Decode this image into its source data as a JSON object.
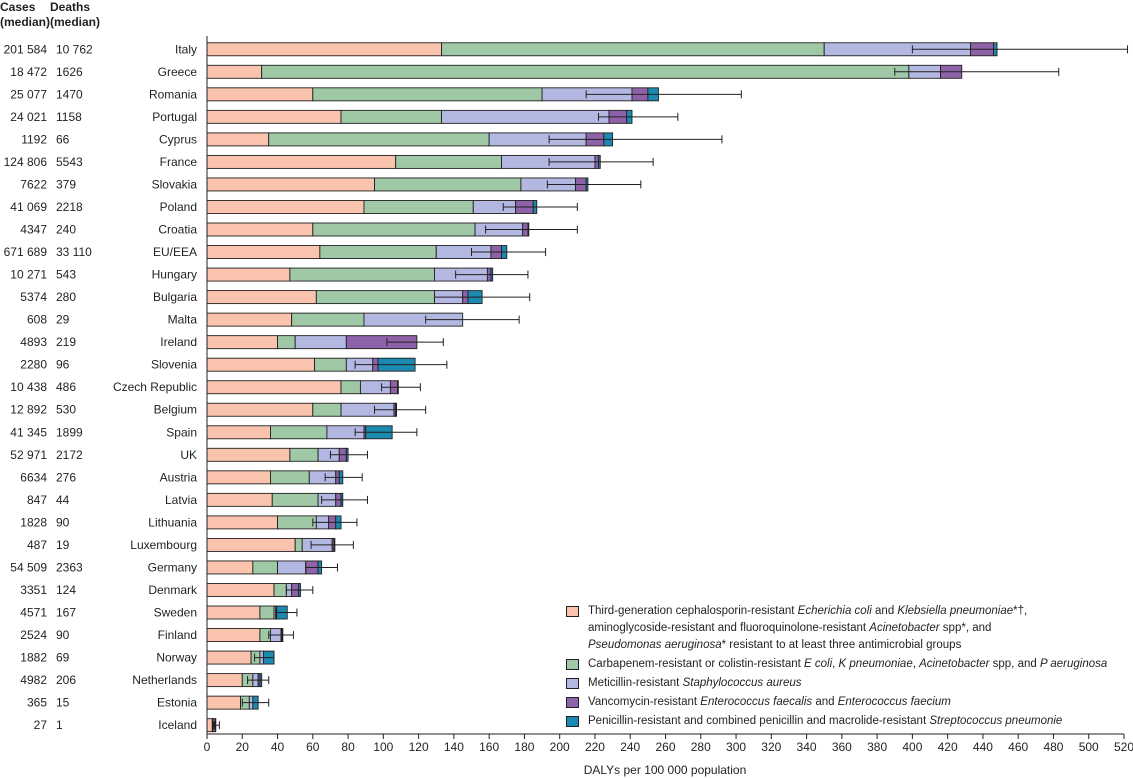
{
  "headers": {
    "cases": [
      "Cases",
      "(median)"
    ],
    "deaths": [
      "Deaths",
      "(median)"
    ]
  },
  "colors": {
    "s1": "#f9c3ad",
    "s2": "#9fc9a6",
    "s3": "#b3b8e2",
    "s4": "#8e62a8",
    "s5": "#1b8ab0",
    "axis": "#231f20"
  },
  "legend": [
    {
      "key": "s1",
      "lines": [
        [
          {
            "t": "Third-generation cephalosporin-resistant "
          },
          {
            "t": "Echerichia coli",
            "i": true
          },
          {
            "t": " and "
          },
          {
            "t": "Klebsiella pneumoniae",
            "i": true
          },
          {
            "t": "*†,"
          }
        ],
        [
          {
            "t": "aminoglycoside-resistant and fluoroquinolone-resistant "
          },
          {
            "t": "Acinetobacter",
            "i": true
          },
          {
            "t": " spp*, and"
          }
        ],
        [
          {
            "t": "Pseudomonas aeruginosa",
            "i": true
          },
          {
            "t": "* resistant to at least three antimicrobial groups"
          }
        ]
      ]
    },
    {
      "key": "s2",
      "lines": [
        [
          {
            "t": "Carbapenem-resistant or colistin-resistant "
          },
          {
            "t": "E coli",
            "i": true
          },
          {
            "t": ",  "
          },
          {
            "t": "K pneumoniae",
            "i": true
          },
          {
            "t": ", "
          },
          {
            "t": "Acinetobacter",
            "i": true
          },
          {
            "t": " spp, and "
          },
          {
            "t": "P aeruginosa",
            "i": true
          }
        ]
      ]
    },
    {
      "key": "s3",
      "lines": [
        [
          {
            "t": "Meticillin-resistant "
          },
          {
            "t": "Staphylococcus aureus",
            "i": true
          }
        ]
      ]
    },
    {
      "key": "s4",
      "lines": [
        [
          {
            "t": "Vancomycin-resistant "
          },
          {
            "t": "Enterococcus faecalis",
            "i": true
          },
          {
            "t": " and "
          },
          {
            "t": "Enterococcus faecium",
            "i": true
          }
        ]
      ]
    },
    {
      "key": "s5",
      "lines": [
        [
          {
            "t": "Penicillin-resistant and combined penicillin and macrolide-resistant "
          },
          {
            "t": "Streptococcus pneumonie",
            "i": true
          }
        ]
      ]
    }
  ],
  "chart_data": {
    "type": "bar",
    "orientation": "horizontal",
    "stacked": true,
    "xlabel": "DALYs per 100 000 population",
    "xlim": [
      0,
      520
    ],
    "xticks": [
      0,
      20,
      40,
      60,
      80,
      100,
      120,
      140,
      160,
      180,
      200,
      220,
      240,
      260,
      280,
      300,
      320,
      340,
      360,
      380,
      400,
      420,
      440,
      460,
      480,
      500,
      520
    ],
    "categories": [
      "Italy",
      "Greece",
      "Romania",
      "Portugal",
      "Cyprus",
      "France",
      "Slovakia",
      "Poland",
      "Croatia",
      "EU/EEA",
      "Hungary",
      "Bulgaria",
      "Malta",
      "Ireland",
      "Slovenia",
      "Czech Republic",
      "Belgium",
      "Spain",
      "UK",
      "Austria",
      "Latvia",
      "Lithuania",
      "Luxembourg",
      "Germany",
      "Denmark",
      "Sweden",
      "Finland",
      "Norway",
      "Netherlands",
      "Estonia",
      "Iceland"
    ],
    "cases": [
      "201 584",
      "18 472",
      "25 077",
      "24 021",
      "1192",
      "124 806",
      "7622",
      "41 069",
      "4347",
      "671 689",
      "10 271",
      "5374",
      "608",
      "4893",
      "2280",
      "10 438",
      "12 892",
      "41 345",
      "52 971",
      "6634",
      "847",
      "1828",
      "487",
      "54 509",
      "3351",
      "4571",
      "2524",
      "1882",
      "4982",
      "365",
      "27"
    ],
    "deaths": [
      "10 762",
      "1626",
      "1470",
      "1158",
      "66",
      "5543",
      "379",
      "2218",
      "240",
      "33 110",
      "543",
      "280",
      "29",
      "219",
      "96",
      "486",
      "530",
      "1899",
      "2172",
      "276",
      "44",
      "90",
      "19",
      "2363",
      "124",
      "167",
      "90",
      "69",
      "206",
      "15",
      "1"
    ],
    "series": [
      {
        "key": "s1",
        "values": [
          133,
          31,
          60,
          76,
          35,
          107,
          95,
          89,
          60,
          64,
          47,
          62,
          48,
          40,
          61,
          76,
          60,
          36,
          47,
          36,
          37,
          40,
          50,
          26,
          38,
          30,
          30,
          25,
          20,
          19,
          3
        ]
      },
      {
        "key": "s2",
        "values": [
          217,
          367,
          130,
          57,
          125,
          60,
          83,
          62,
          92,
          66,
          82,
          67,
          41,
          10,
          18,
          11,
          16,
          32,
          16,
          22,
          26,
          22,
          4,
          14,
          7,
          8,
          6,
          5,
          6,
          5,
          0.5
        ]
      },
      {
        "key": "s3",
        "values": [
          83,
          18,
          51,
          95,
          55,
          53,
          31,
          24,
          27,
          31,
          30,
          16,
          56,
          29,
          15,
          17,
          30,
          21,
          12,
          15,
          10,
          7,
          17,
          16,
          3,
          1,
          6,
          2,
          3,
          2,
          1
        ]
      },
      {
        "key": "s4",
        "values": [
          13,
          12,
          9,
          10,
          10,
          2,
          6,
          10,
          3,
          6,
          2,
          3,
          0,
          40,
          3,
          4,
          1,
          1,
          4,
          2,
          3,
          4,
          1,
          7,
          4,
          0.5,
          0.5,
          0,
          1,
          0,
          0
        ]
      },
      {
        "key": "s5",
        "values": [
          2,
          0,
          6,
          3,
          5,
          1,
          1,
          2,
          0.5,
          3,
          1,
          8,
          0,
          0,
          21,
          0.5,
          0.5,
          15,
          1,
          2,
          1,
          3,
          0.5,
          2,
          1,
          6,
          0.5,
          6,
          1,
          3,
          0.5
        ]
      }
    ],
    "error_low": [
      400,
      390,
      215,
      222,
      194,
      194,
      193,
      168,
      158,
      150,
      141,
      129,
      124,
      102,
      84,
      99,
      95,
      84,
      70,
      67,
      65,
      60,
      59,
      56,
      45,
      39,
      35,
      27,
      23,
      20,
      4
    ],
    "error_high": [
      522,
      483,
      303,
      267,
      292,
      253,
      246,
      210,
      210,
      192,
      182,
      183,
      177,
      134,
      136,
      121,
      124,
      119,
      91,
      88,
      91,
      85,
      83,
      74,
      60,
      51,
      49,
      38,
      35,
      35,
      7
    ]
  }
}
